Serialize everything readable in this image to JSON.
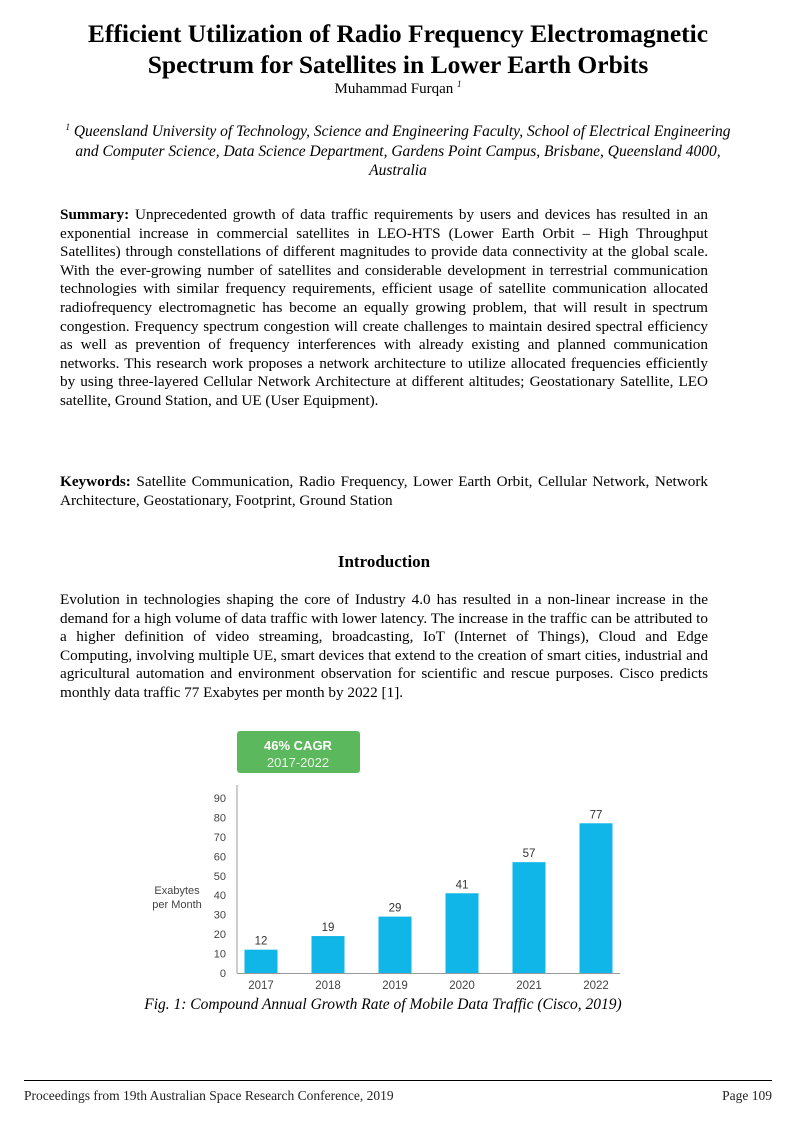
{
  "paper": {
    "title_line1": "Efficient Utilization of Radio Frequency Electromagnetic",
    "title_line2": "Spectrum for Satellites in Lower Earth Orbits",
    "author": "Muhammad Furqan",
    "author_sup": "1",
    "affiliation_sup": "1",
    "affiliation": "Queensland University of Technology, Science and Engineering Faculty, School of Electrical Engineering and Computer Science, Data Science Department, Gardens Point Campus, Brisbane, Queensland 4000, Australia",
    "summary_label": "Summary:",
    "summary": "Unprecedented growth of data traffic requirements by users and devices has resulted in an exponential increase in commercial satellites in LEO-HTS (Lower Earth Orbit – High Throughput Satellites) through constellations of different magnitudes to provide data connectivity at the global scale. With the ever-growing number of satellites and considerable development in terrestrial communication technologies with similar frequency requirements, efficient usage of satellite communication allocated radiofrequency electromagnetic has become an equally growing problem, that will result in spectrum congestion. Frequency spectrum congestion will create challenges to maintain desired spectral efficiency as well as prevention of frequency interferences with already existing and planned communication networks. This research work proposes a network architecture to utilize allocated frequencies efficiently by using three-layered Cellular Network Architecture at different altitudes; Geostationary Satellite, LEO satellite, Ground Station, and UE (User Equipment).",
    "keywords_label": "Keywords:",
    "keywords": "Satellite Communication, Radio Frequency, Lower Earth Orbit, Cellular Network, Network Architecture, Geostationary, Footprint, Ground Station",
    "intro_heading": "Introduction",
    "intro": "Evolution in technologies shaping the core of Industry 4.0 has resulted in a non-linear increase in the demand for a high volume of data traffic with lower latency. The increase in the traffic can be attributed to a higher definition of video streaming, broadcasting, IoT (Internet of Things), Cloud and Edge Computing, involving multiple UE, smart devices that extend to the creation of smart cities, industrial and agricultural automation and environment observation for scientific and rescue purposes. Cisco predicts monthly data traffic 77 Exabytes per month by 2022 [1].",
    "figure_caption": "Fig. 1: Compound Annual Growth Rate of Mobile Data Traffic (Cisco, 2019)",
    "footer_left": "Proceedings from 19th Australian Space Research Conference, 2019",
    "footer_right": "Page 109"
  },
  "chart_data": {
    "type": "bar",
    "categories": [
      "2017",
      "2018",
      "2019",
      "2020",
      "2021",
      "2022"
    ],
    "values": [
      12,
      19,
      29,
      41,
      57,
      77
    ],
    "data_labels": [
      "12",
      "19",
      "29",
      "41",
      "57",
      "77"
    ],
    "ylabel_line1": "Exabytes",
    "ylabel_line2": "per Month",
    "yticks": [
      "0",
      "10",
      "20",
      "30",
      "40",
      "50",
      "60",
      "70",
      "80",
      "90"
    ],
    "ylim": [
      0,
      90
    ],
    "grid": false,
    "badge_line1": "46% CAGR",
    "badge_line2": "2017-2022",
    "colors": {
      "bar": "#10b6e8",
      "badge": "#5cb85c",
      "axis": "#999999",
      "text": "#444444"
    }
  }
}
